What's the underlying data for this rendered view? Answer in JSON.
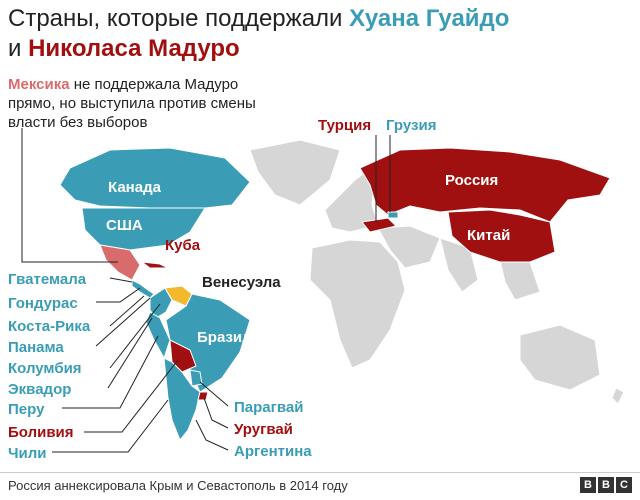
{
  "title": {
    "prefix": "Страны, которые поддержали",
    "guaido": "Хуана Гуайдо",
    "connector": "и",
    "maduro": "Николаса Мадуро"
  },
  "note": {
    "mexico": "Мексика",
    "text": "не поддержала Мадуро прямо, но выступила против смены власти без выборов"
  },
  "colors": {
    "guaido": "#3a9db5",
    "maduro": "#a11010",
    "mexico": "#d86c6c",
    "venezuela": "#f3b92e",
    "neutral": "#d6d6d6"
  },
  "countries": {
    "canada": "Канада",
    "usa": "США",
    "cuba": "Куба",
    "venezuela": "Венесуэла",
    "brazil": "Бразилия",
    "turkey": "Турция",
    "georgia": "Грузия",
    "russia": "Россия",
    "china": "Китай",
    "guatemala": "Гватемала",
    "honduras": "Гондурас",
    "costa_rica": "Коста-Рика",
    "panama": "Панама",
    "colombia": "Колумбия",
    "ecuador": "Эквадор",
    "peru": "Перу",
    "bolivia": "Боливия",
    "chile": "Чили",
    "paraguay": "Парагвай",
    "uruguay": "Уругвай",
    "argentina": "Аргентина"
  },
  "footer": {
    "note": "Россия аннексировала Крым и Севастополь в 2014 году",
    "logo": [
      "B",
      "B",
      "C"
    ]
  }
}
